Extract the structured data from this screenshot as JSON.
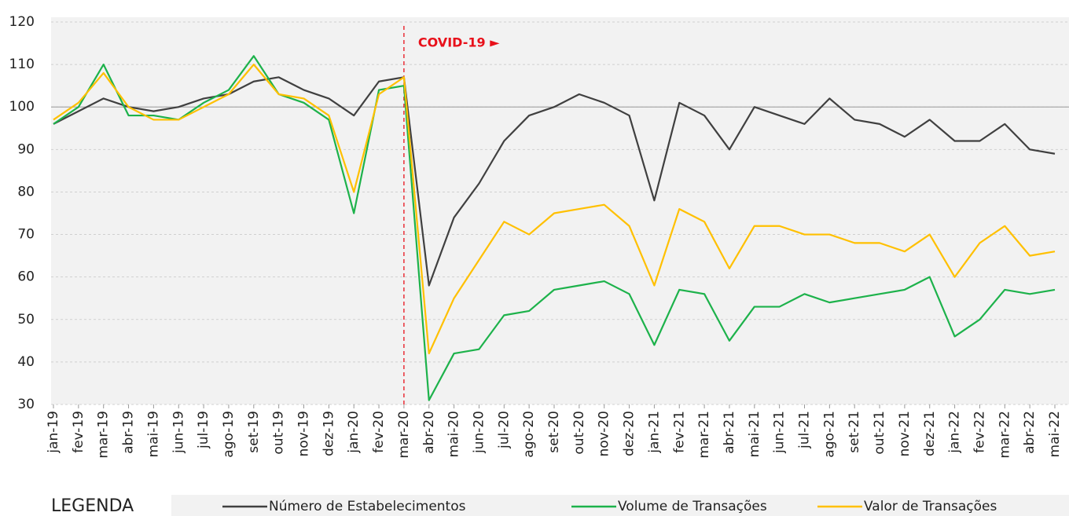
{
  "chart_data": {
    "type": "line",
    "categories": [
      "jan-19",
      "fev-19",
      "mar-19",
      "abr-19",
      "mai-19",
      "jun-19",
      "jul-19",
      "ago-19",
      "set-19",
      "out-19",
      "nov-19",
      "dez-19",
      "jan-20",
      "fev-20",
      "mar-20",
      "abr-20",
      "mai-20",
      "jun-20",
      "jul-20",
      "ago-20",
      "set-20",
      "out-20",
      "nov-20",
      "dez-20",
      "jan-21",
      "fev-21",
      "mar-21",
      "abr-21",
      "mai-21",
      "jun-21",
      "jul-21",
      "ago-21",
      "set-21",
      "out-21",
      "nov-21",
      "dez-21",
      "jan-22",
      "fev-22",
      "mar-22",
      "abr-22",
      "mai-22"
    ],
    "series": [
      {
        "name": "Número de Estabelecimentos",
        "color": "#404040",
        "values": [
          96,
          99,
          102,
          100,
          99,
          100,
          102,
          103,
          106,
          107,
          104,
          102,
          98,
          106,
          107,
          58,
          74,
          82,
          92,
          98,
          100,
          103,
          101,
          98,
          78,
          101,
          98,
          90,
          100,
          98,
          96,
          102,
          97,
          96,
          93,
          97,
          92,
          92,
          96,
          90,
          89
        ]
      },
      {
        "name": "Volume de Transações",
        "color": "#1db24b",
        "values": [
          96,
          100,
          110,
          98,
          98,
          97,
          101,
          104,
          112,
          103,
          101,
          97,
          75,
          104,
          105,
          31,
          42,
          43,
          51,
          52,
          57,
          58,
          59,
          56,
          44,
          57,
          56,
          45,
          53,
          53,
          56,
          54,
          55,
          56,
          57,
          60,
          46,
          50,
          57,
          56,
          57
        ]
      },
      {
        "name": "Valor de Transações",
        "color": "#ffc000",
        "values": [
          97,
          101,
          108,
          100,
          97,
          97,
          100,
          103,
          110,
          103,
          102,
          98,
          80,
          103,
          107,
          42,
          55,
          64,
          73,
          70,
          75,
          76,
          77,
          72,
          58,
          76,
          73,
          62,
          72,
          72,
          70,
          70,
          68,
          68,
          66,
          70,
          60,
          68,
          72,
          65,
          66
        ]
      }
    ],
    "ylim": [
      30,
      120
    ],
    "yticks": [
      30,
      40,
      50,
      60,
      70,
      80,
      90,
      100,
      110,
      120
    ],
    "grid": true,
    "hline": 100,
    "annotation": {
      "text": "COVID-19 ►",
      "x": "mar-20",
      "color": "#e8101a"
    },
    "legend_title": "LEGENDA",
    "legend": "bottom"
  }
}
